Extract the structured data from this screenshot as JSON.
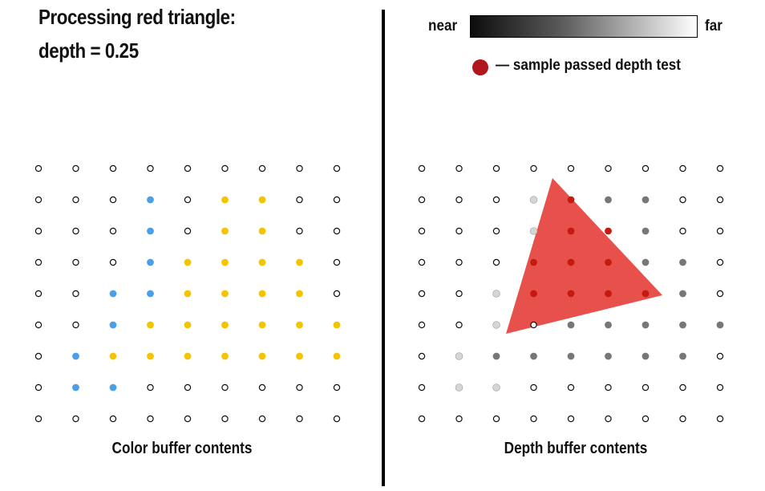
{
  "title": {
    "line1": "Processing red triangle:",
    "line2": "depth = 0.25"
  },
  "legend": {
    "near_label": "near",
    "far_label": "far",
    "passed_label": "— sample passed depth test"
  },
  "captions": {
    "color_buffer": "Color buffer contents",
    "depth_buffer": "Depth buffer contents"
  },
  "colors": {
    "empty": "#ffffff",
    "blue": "#4a9fe8",
    "yellow": "#f5c400",
    "red_triangle": "#e8504b",
    "passed_sample": "#c41a10",
    "depth_light": "#d6d6d6",
    "depth_dark": "#777777"
  },
  "color_buffer": [
    "eeeeeeeee",
    "eeebeyyee",
    "eeebeyyee",
    "eeebyyyye",
    "eebbyyyye",
    "eebyyyyyy",
    "ebyyyyyyy",
    "ebbeeeeee",
    "eeeeeeeee"
  ],
  "depth_buffer": [
    "eeeeeeeee",
    "eeeleddee",
    "eeeleddee",
    "eeeeeddde",
    "eeleeddde",
    "eeleddddd",
    "eldddddde",
    "elleeeeee",
    "eeeeeeeee"
  ],
  "passed_samples": [
    [
      1,
      4
    ],
    [
      2,
      4
    ],
    [
      2,
      5
    ],
    [
      3,
      3
    ],
    [
      3,
      4
    ],
    [
      3,
      5
    ],
    [
      4,
      3
    ],
    [
      4,
      4
    ],
    [
      4,
      5
    ],
    [
      4,
      6
    ]
  ]
}
